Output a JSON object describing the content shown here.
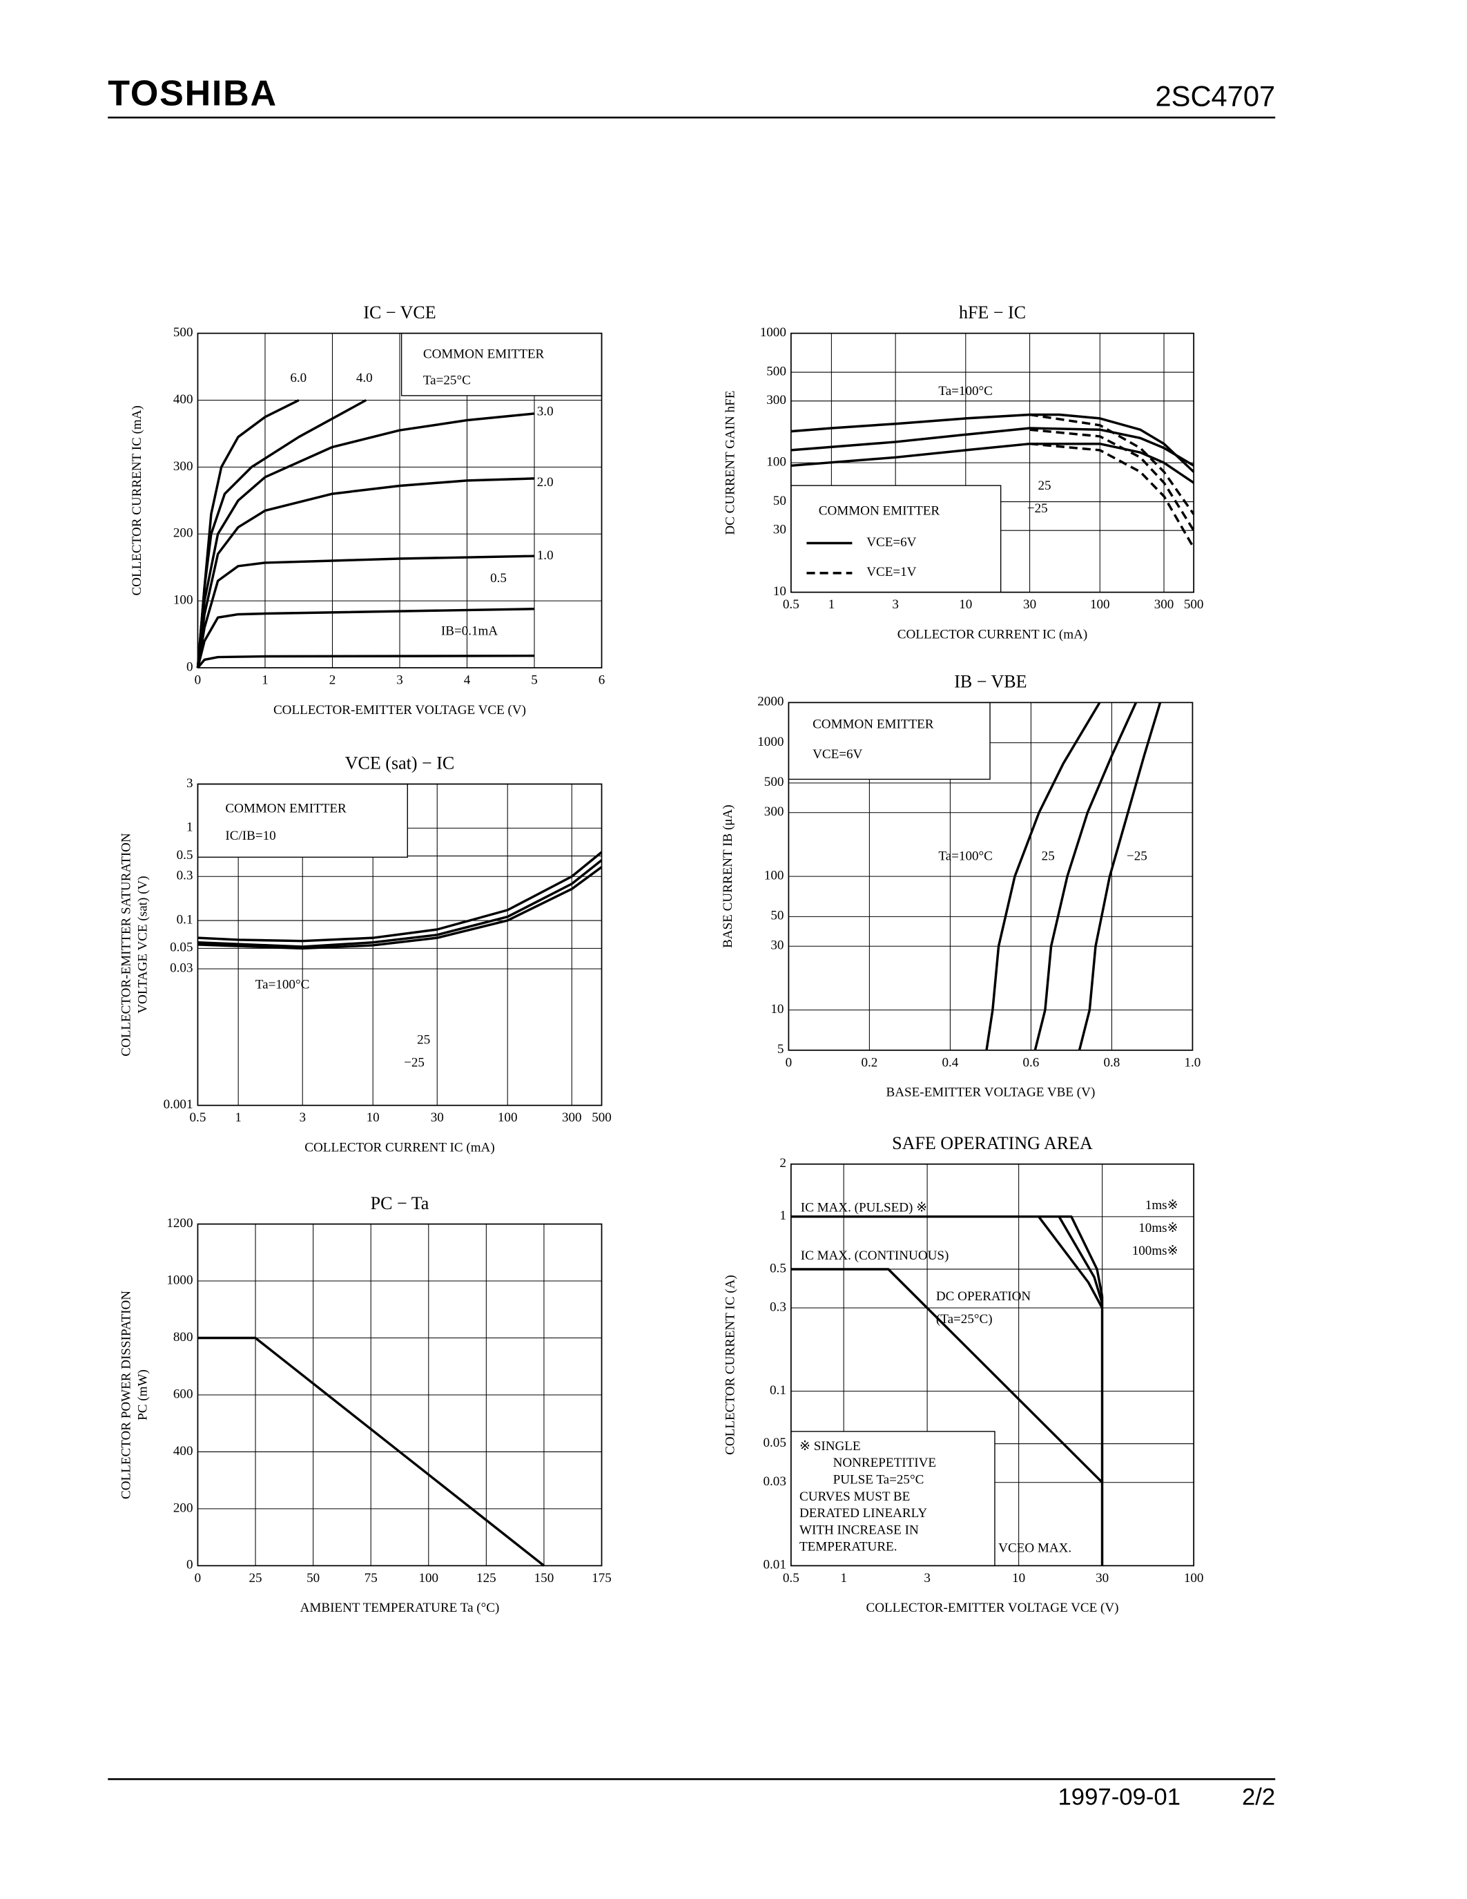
{
  "header": {
    "brand": "TOSHIBA",
    "part": "2SC4707"
  },
  "footer": {
    "date": "1997-09-01",
    "page": "2/2"
  },
  "chart_data": [
    {
      "type": "line",
      "title": "IC − VCE",
      "xlabel": "COLLECTOR-EMITTER VOLTAGE VCE (V)",
      "ylabel": "COLLECTOR CURRENT IC (mA)",
      "xlim": [
        0,
        6
      ],
      "ylim": [
        0,
        500
      ],
      "xticks": [
        0,
        1,
        2,
        3,
        4,
        5,
        6
      ],
      "yticks": [
        0,
        100,
        200,
        300,
        400,
        500
      ],
      "xlog": false,
      "ylog": false,
      "grid": true,
      "annotations": [
        "COMMON EMITTER",
        "Ta=25°C"
      ],
      "series": [
        {
          "name": "6.0",
          "color": "#000000",
          "x": [
            0,
            0.1,
            0.2,
            0.35,
            0.6,
            1.0,
            1.5
          ],
          "values": [
            0,
            120,
            230,
            300,
            345,
            375,
            400
          ]
        },
        {
          "name": "4.0",
          "color": "#000000",
          "x": [
            0,
            0.1,
            0.2,
            0.4,
            0.8,
            1.5,
            2.5
          ],
          "values": [
            0,
            120,
            200,
            260,
            300,
            345,
            400
          ]
        },
        {
          "name": "3.0",
          "color": "#000000",
          "x": [
            0,
            0.1,
            0.3,
            0.6,
            1,
            2,
            3,
            4,
            5
          ],
          "values": [
            0,
            100,
            200,
            250,
            285,
            330,
            355,
            370,
            380
          ]
        },
        {
          "name": "2.0",
          "color": "#000000",
          "x": [
            0,
            0.1,
            0.3,
            0.6,
            1,
            2,
            3,
            4,
            5
          ],
          "values": [
            0,
            80,
            170,
            210,
            235,
            260,
            272,
            280,
            283
          ]
        },
        {
          "name": "1.0",
          "color": "#000000",
          "x": [
            0,
            0.1,
            0.3,
            0.6,
            1,
            2,
            3,
            5
          ],
          "values": [
            0,
            60,
            130,
            152,
            157,
            160,
            163,
            167
          ]
        },
        {
          "name": "0.5",
          "color": "#000000",
          "x": [
            0,
            0.1,
            0.3,
            0.6,
            1,
            5
          ],
          "values": [
            0,
            40,
            75,
            80,
            81,
            88
          ]
        },
        {
          "name": "IB=0.1mA",
          "color": "#000000",
          "x": [
            0,
            0.1,
            0.3,
            1,
            5
          ],
          "values": [
            0,
            12,
            16,
            17,
            18
          ]
        }
      ]
    },
    {
      "type": "line",
      "title": "hFE − IC",
      "xlabel": "COLLECTOR CURRENT IC (mA)",
      "ylabel": "DC CURRENT GAIN hFE",
      "xlim": [
        0.5,
        500
      ],
      "ylim": [
        10,
        1000
      ],
      "xticks": [
        0.5,
        1,
        3,
        10,
        30,
        100,
        300,
        500
      ],
      "yticks": [
        10,
        30,
        50,
        100,
        300,
        500,
        1000
      ],
      "xlog": true,
      "ylog": true,
      "grid": true,
      "annotations": [
        "COMMON EMITTER"
      ],
      "legend": [
        {
          "label": "VCE=6V",
          "dash": false
        },
        {
          "label": "VCE=1V",
          "dash": true
        }
      ],
      "series": [
        {
          "name": "Ta=100°C",
          "color": "#000000",
          "x": [
            0.5,
            1,
            3,
            10,
            30,
            50,
            100,
            200,
            300,
            500
          ],
          "values": [
            175,
            185,
            200,
            220,
            235,
            235,
            220,
            180,
            140,
            85
          ]
        },
        {
          "name": "25",
          "color": "#000000",
          "x": [
            0.5,
            3,
            10,
            30,
            100,
            200,
            300,
            500
          ],
          "values": [
            125,
            145,
            165,
            185,
            180,
            155,
            130,
            95
          ]
        },
        {
          "name": "−25",
          "color": "#000000",
          "x": [
            0.5,
            3,
            10,
            30,
            100,
            200,
            300,
            500
          ],
          "values": [
            95,
            110,
            125,
            140,
            140,
            120,
            100,
            70
          ]
        },
        {
          "color": "#000000",
          "dash": true,
          "x": [
            30,
            100,
            200,
            300,
            500
          ],
          "values": [
            235,
            195,
            130,
            85,
            40
          ]
        },
        {
          "color": "#000000",
          "dash": true,
          "x": [
            30,
            100,
            200,
            300,
            500
          ],
          "values": [
            180,
            160,
            110,
            70,
            30
          ]
        },
        {
          "color": "#000000",
          "dash": true,
          "x": [
            30,
            100,
            200,
            300,
            500
          ],
          "values": [
            140,
            125,
            85,
            55,
            22
          ]
        }
      ]
    },
    {
      "type": "line",
      "title": "VCE (sat) − IC",
      "xlabel": "COLLECTOR CURRENT IC (mA)",
      "ylabel": [
        "COLLECTOR-EMITTER SATURATION",
        "VOLTAGE VCE (sat) (V)"
      ],
      "xlim": [
        0.5,
        500
      ],
      "ylim": [
        0.001,
        3
      ],
      "xticks": [
        0.5,
        1,
        3,
        10,
        30,
        100,
        300,
        500
      ],
      "yticks": [
        0.001,
        0.03,
        0.05,
        0.1,
        0.3,
        0.5,
        1,
        3
      ],
      "xlog": true,
      "ylog": true,
      "grid": true,
      "annotations": [
        "COMMON EMITTER",
        "IC/IB=10"
      ],
      "series": [
        {
          "name": "Ta=100°C",
          "color": "#000000",
          "x": [
            0.5,
            1,
            3,
            10,
            30,
            100,
            300,
            500
          ],
          "values": [
            0.065,
            0.062,
            0.06,
            0.065,
            0.08,
            0.13,
            0.3,
            0.55
          ]
        },
        {
          "name": "25",
          "color": "#000000",
          "x": [
            0.5,
            3,
            10,
            30,
            100,
            300,
            500
          ],
          "values": [
            0.058,
            0.052,
            0.058,
            0.07,
            0.11,
            0.25,
            0.45
          ]
        },
        {
          "name": "−25",
          "color": "#000000",
          "x": [
            0.5,
            3,
            10,
            30,
            100,
            300,
            500
          ],
          "values": [
            0.055,
            0.05,
            0.054,
            0.065,
            0.1,
            0.22,
            0.38
          ]
        }
      ]
    },
    {
      "type": "line",
      "title": "IB − VBE",
      "xlabel": "BASE-EMITTER VOLTAGE VBE (V)",
      "ylabel": "BASE CURRENT IB (μA)",
      "xlim": [
        0,
        1.0
      ],
      "ylim": [
        5,
        2000
      ],
      "xticks": [
        0,
        0.2,
        0.4,
        0.6,
        0.8,
        {
          "value": 1.0,
          "label": "1.0"
        }
      ],
      "yticks": [
        5,
        10,
        30,
        50,
        100,
        300,
        500,
        1000,
        2000
      ],
      "xlog": false,
      "ylog": true,
      "grid": true,
      "annotations": [
        "COMMON EMITTER",
        "VCE=6V"
      ],
      "series": [
        {
          "name": "Ta=100°C",
          "color": "#000000",
          "x": [
            0.49,
            0.505,
            0.52,
            0.56,
            0.62,
            0.68,
            0.77
          ],
          "values": [
            5,
            10,
            30,
            100,
            300,
            700,
            2000
          ]
        },
        {
          "name": "25",
          "color": "#000000",
          "x": [
            0.61,
            0.635,
            0.65,
            0.69,
            0.74,
            0.8,
            0.86
          ],
          "values": [
            5,
            10,
            30,
            100,
            300,
            800,
            2000
          ]
        },
        {
          "name": "−25",
          "color": "#000000",
          "x": [
            0.72,
            0.745,
            0.76,
            0.795,
            0.84,
            0.88,
            0.92
          ],
          "values": [
            5,
            10,
            30,
            100,
            300,
            800,
            2000
          ]
        }
      ]
    },
    {
      "type": "line",
      "title": "PC − Ta",
      "xlabel": "AMBIENT TEMPERATURE Ta (°C)",
      "ylabel": [
        "COLLECTOR POWER DISSIPATION",
        "PC (mW)"
      ],
      "xlim": [
        0,
        175
      ],
      "ylim": [
        0,
        1200
      ],
      "xticks": [
        0,
        25,
        50,
        75,
        100,
        125,
        150,
        175
      ],
      "yticks": [
        0,
        200,
        400,
        600,
        800,
        1000,
        1200
      ],
      "xlog": false,
      "ylog": false,
      "grid": true,
      "annotations": [],
      "series": [
        {
          "color": "#000000",
          "x": [
            0,
            25,
            150
          ],
          "values": [
            800,
            800,
            0
          ]
        }
      ]
    },
    {
      "type": "line",
      "title": "SAFE OPERATING AREA",
      "xlabel": "COLLECTOR-EMITTER VOLTAGE VCE (V)",
      "ylabel": "COLLECTOR CURRENT IC (A)",
      "xlim": [
        0.5,
        100
      ],
      "ylim": [
        0.01,
        2
      ],
      "xticks": [
        0.5,
        1,
        3,
        10,
        30,
        100
      ],
      "yticks": [
        0.01,
        0.03,
        0.05,
        0.1,
        0.3,
        0.5,
        1,
        2
      ],
      "xlog": true,
      "ylog": true,
      "grid": true,
      "annotations": [
        "IC MAX. (PULSED) ※",
        "IC MAX. (CONTINUOUS)",
        "(Ta=25°C)",
        "※ SINGLE",
        "NONREPETITIVE",
        "PULSE Ta=25°C",
        "CURVES MUST BE",
        "DERATED LINEARLY",
        "WITH INCREASE IN",
        "TEMPERATURE."
      ],
      "series": [
        {
          "name": "1ms※",
          "color": "#000000",
          "x": [
            0.5,
            20,
            28,
            30
          ],
          "values": [
            1,
            1,
            0.5,
            0.35
          ]
        },
        {
          "name": "10ms※",
          "color": "#000000",
          "x": [
            17,
            27,
            30
          ],
          "values": [
            1,
            0.45,
            0.32
          ]
        },
        {
          "name": "100ms※",
          "color": "#000000",
          "x": [
            13,
            25,
            30
          ],
          "values": [
            1,
            0.42,
            0.3
          ]
        },
        {
          "name": "DC OPERATION",
          "color": "#000000",
          "x": [
            0.5,
            1.8,
            30
          ],
          "values": [
            0.5,
            0.5,
            0.03
          ]
        },
        {
          "name": "VCEO MAX.",
          "color": "#000000",
          "x": [
            30,
            30
          ],
          "values": [
            0.01,
            0.35
          ]
        }
      ]
    }
  ]
}
